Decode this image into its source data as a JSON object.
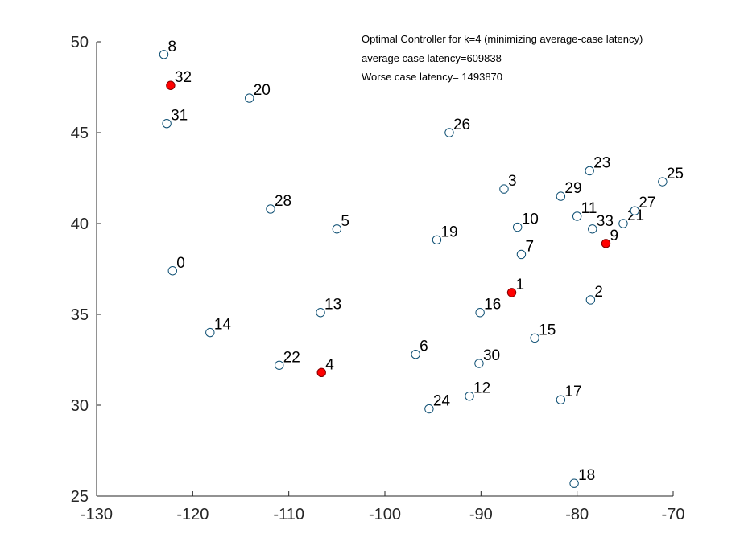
{
  "chart_data": {
    "type": "scatter",
    "xlim": [
      -130,
      -70
    ],
    "ylim": [
      25,
      50
    ],
    "x_ticks": [
      -130,
      -120,
      -110,
      -100,
      -90,
      -80,
      -70
    ],
    "y_ticks": [
      25,
      30,
      35,
      40,
      45,
      50
    ],
    "x_tick_labels": [
      "-130",
      "-120",
      "-110",
      "-100",
      "-90",
      "-80",
      "-70"
    ],
    "y_tick_labels": [
      "25",
      "30",
      "35",
      "40",
      "45",
      "50"
    ],
    "grid": false,
    "annotations": [
      "Optimal Controller for k=4 (minimizing average-case latency)",
      "average case latency=609838",
      "Worse case latency= 1493870"
    ],
    "colors": {
      "node_fill": "#ffffff",
      "node_stroke": "#0e4f73",
      "controller_fill": "#ff0000",
      "controller_stroke": "#800000"
    },
    "points": [
      {
        "label": "0",
        "x": -122.1,
        "y": 37.4,
        "controller": false
      },
      {
        "label": "1",
        "x": -86.8,
        "y": 36.2,
        "controller": true
      },
      {
        "label": "2",
        "x": -78.6,
        "y": 35.8,
        "controller": false
      },
      {
        "label": "3",
        "x": -87.6,
        "y": 41.9,
        "controller": false
      },
      {
        "label": "4",
        "x": -106.6,
        "y": 31.8,
        "controller": true
      },
      {
        "label": "5",
        "x": -105.0,
        "y": 39.7,
        "controller": false
      },
      {
        "label": "6",
        "x": -96.8,
        "y": 32.8,
        "controller": false
      },
      {
        "label": "7",
        "x": -85.8,
        "y": 38.3,
        "controller": false
      },
      {
        "label": "8",
        "x": -123.0,
        "y": 49.3,
        "controller": false
      },
      {
        "label": "9",
        "x": -77.0,
        "y": 38.9,
        "controller": true
      },
      {
        "label": "10",
        "x": -86.2,
        "y": 39.8,
        "controller": false
      },
      {
        "label": "11",
        "x": -80.0,
        "y": 40.4,
        "controller": false
      },
      {
        "label": "12",
        "x": -91.2,
        "y": 30.5,
        "controller": false
      },
      {
        "label": "13",
        "x": -106.7,
        "y": 35.1,
        "controller": false
      },
      {
        "label": "14",
        "x": -118.2,
        "y": 34.0,
        "controller": false
      },
      {
        "label": "15",
        "x": -84.4,
        "y": 33.7,
        "controller": false
      },
      {
        "label": "16",
        "x": -90.1,
        "y": 35.1,
        "controller": false
      },
      {
        "label": "17",
        "x": -81.7,
        "y": 30.3,
        "controller": false
      },
      {
        "label": "18",
        "x": -80.3,
        "y": 25.7,
        "controller": false
      },
      {
        "label": "19",
        "x": -94.6,
        "y": 39.1,
        "controller": false
      },
      {
        "label": "20",
        "x": -114.1,
        "y": 46.9,
        "controller": false
      },
      {
        "label": "21",
        "x": -75.2,
        "y": 40.0,
        "controller": false
      },
      {
        "label": "22",
        "x": -111.0,
        "y": 32.2,
        "controller": false
      },
      {
        "label": "23",
        "x": -78.7,
        "y": 42.9,
        "controller": false
      },
      {
        "label": "24",
        "x": -95.4,
        "y": 29.8,
        "controller": false
      },
      {
        "label": "25",
        "x": -71.1,
        "y": 42.3,
        "controller": false
      },
      {
        "label": "26",
        "x": -93.3,
        "y": 45.0,
        "controller": false
      },
      {
        "label": "27",
        "x": -74.0,
        "y": 40.7,
        "controller": false
      },
      {
        "label": "28",
        "x": -111.9,
        "y": 40.8,
        "controller": false
      },
      {
        "label": "29",
        "x": -81.7,
        "y": 41.5,
        "controller": false
      },
      {
        "label": "30",
        "x": -90.2,
        "y": 32.3,
        "controller": false
      },
      {
        "label": "31",
        "x": -122.7,
        "y": 45.5,
        "controller": false
      },
      {
        "label": "32",
        "x": -122.3,
        "y": 47.6,
        "controller": true
      },
      {
        "label": "33",
        "x": -78.4,
        "y": 39.7,
        "controller": false
      }
    ]
  }
}
